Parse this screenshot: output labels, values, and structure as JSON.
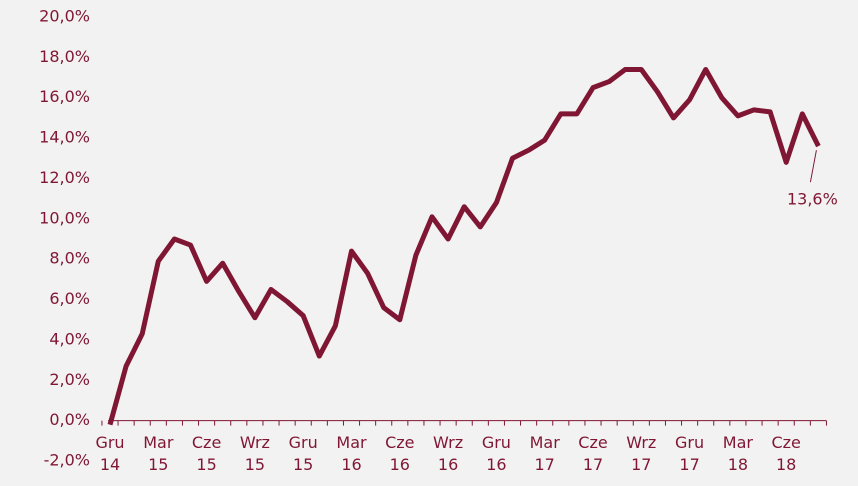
{
  "chart_data": {
    "type": "line",
    "categories": [
      "Gru 14",
      null,
      null,
      "Mar 15",
      null,
      null,
      "Cze 15",
      null,
      null,
      "Wrz 15",
      null,
      null,
      "Gru 15",
      null,
      null,
      "Mar 16",
      null,
      null,
      "Cze 16",
      null,
      null,
      "Wrz 16",
      null,
      null,
      "Gru 16",
      null,
      null,
      "Mar 17",
      null,
      null,
      "Cze 17",
      null,
      null,
      "Wrz 17",
      null,
      null,
      "Gru 17",
      null,
      null,
      "Mar 18",
      null,
      null,
      "Cze 18",
      null,
      null
    ],
    "series": [
      {
        "color": "#7f1734",
        "values": [
          -0.2,
          2.7,
          4.3,
          7.9,
          9.0,
          8.7,
          6.9,
          7.8,
          6.4,
          5.1,
          6.5,
          5.9,
          5.2,
          3.2,
          4.7,
          8.4,
          7.3,
          5.6,
          5.0,
          8.2,
          10.1,
          9.0,
          10.6,
          9.6,
          10.8,
          13.0,
          13.4,
          13.9,
          15.2,
          15.2,
          16.5,
          16.8,
          17.4,
          17.4,
          16.3,
          15.0,
          15.9,
          17.4,
          16.0,
          15.1,
          15.4,
          15.3,
          12.8,
          15.2,
          13.6
        ],
        "value_labels": [
          null,
          null,
          null,
          null,
          null,
          null,
          null,
          null,
          null,
          null,
          null,
          null,
          null,
          null,
          null,
          null,
          null,
          null,
          null,
          null,
          null,
          null,
          null,
          null,
          null,
          null,
          null,
          null,
          null,
          null,
          null,
          null,
          null,
          null,
          null,
          null,
          null,
          null,
          null,
          null,
          null,
          null,
          null,
          null,
          "13,6%"
        ]
      }
    ],
    "ylim": [
      -2,
      20
    ],
    "yticks": [
      {
        "value": -2,
        "label": "-2,0%"
      },
      {
        "value": 0,
        "label": "0,0%"
      },
      {
        "value": 2,
        "label": "2,0%"
      },
      {
        "value": 4,
        "label": "4,0%"
      },
      {
        "value": 6,
        "label": "6,0%"
      },
      {
        "value": 8,
        "label": "8,0%"
      },
      {
        "value": 10,
        "label": "10,0%"
      },
      {
        "value": 12,
        "label": "12,0%"
      },
      {
        "value": 14,
        "label": "14,0%"
      },
      {
        "value": 16,
        "label": "16,0%"
      },
      {
        "value": 18,
        "label": "18,0%"
      },
      {
        "value": 20,
        "label": "20,0%"
      }
    ],
    "grid": false
  }
}
